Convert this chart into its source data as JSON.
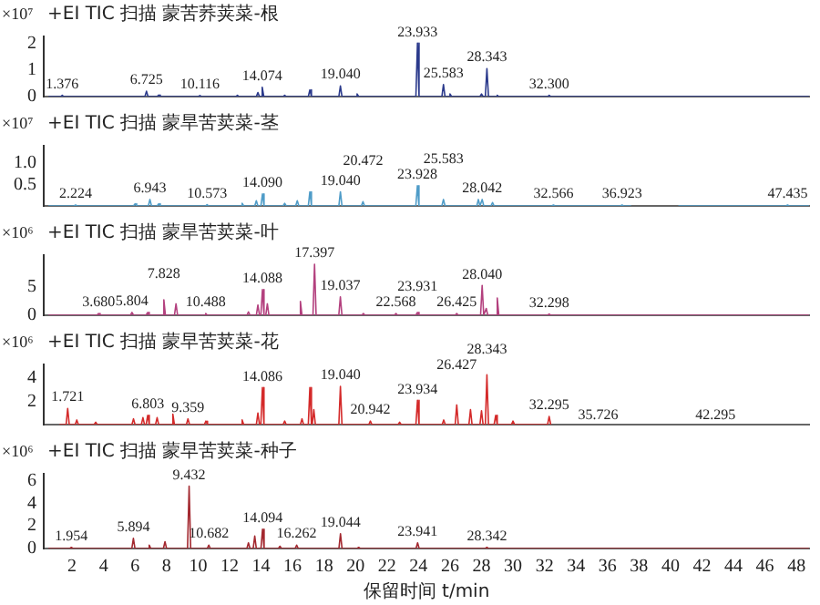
{
  "chart_data": [
    {
      "type": "line",
      "title": "+EI TIC 扫描 蒙苦荞荚菜-根",
      "ylabel": "×10⁷",
      "xlim": [
        0.2,
        48.8
      ],
      "xticks": [
        2,
        4,
        6,
        8,
        10,
        12,
        14,
        16,
        18,
        20,
        22,
        24,
        26,
        28,
        30,
        32,
        34,
        36,
        38,
        40,
        42,
        44,
        46,
        48
      ],
      "ylim": [
        0,
        2.25
      ],
      "yticks": [
        0,
        1,
        2
      ],
      "tick_labels": "y",
      "series": [
        {
          "color": "#2b3a8c",
          "x": [
            0.5,
            1.276,
            1.376,
            1.476,
            6.625,
            6.725,
            6.825,
            7.4,
            7.5,
            7.6,
            10.016,
            10.116,
            10.216,
            12.4,
            12.5,
            12.6,
            13.7,
            13.8,
            13.9,
            13.974,
            14.074,
            14.174,
            15.4,
            15.5,
            15.6,
            17.0,
            17.1,
            17.2,
            18.94,
            19.04,
            19.14,
            20.0,
            20.1,
            20.2,
            23.833,
            23.933,
            24.033,
            25.483,
            25.583,
            25.683,
            25.9,
            26.0,
            26.1,
            27.9,
            28.0,
            28.1,
            28.243,
            28.343,
            28.443,
            28.9,
            29.0,
            29.1,
            32.2,
            32.3,
            32.4,
            48.8
          ],
          "values": [
            0,
            0,
            0.05,
            0,
            0,
            0.2,
            0,
            0,
            0.06,
            0,
            0,
            0.04,
            0,
            0,
            0.05,
            0,
            0,
            0.15,
            0,
            0,
            0.35,
            0,
            0,
            0.05,
            0,
            0,
            0.25,
            0,
            0,
            0.4,
            0,
            0,
            0.1,
            0,
            0,
            2.0,
            0,
            0,
            0.45,
            0,
            0,
            0.1,
            0,
            0,
            0.1,
            0,
            0,
            1.05,
            0,
            0,
            0.05,
            0,
            0,
            0.05,
            0,
            0
          ]
        }
      ],
      "annotations": [
        {
          "text": "1.376",
          "x": 1.376,
          "y": 0.05
        },
        {
          "text": "6.725",
          "x": 6.725,
          "y": 0.2
        },
        {
          "text": "10.116",
          "x": 10.116,
          "y": 0.04
        },
        {
          "text": "14.074",
          "x": 14.074,
          "y": 0.35
        },
        {
          "text": "19.040",
          "x": 19.04,
          "y": 0.4
        },
        {
          "text": "23.933",
          "x": 23.933,
          "y": 2.0
        },
        {
          "text": "25.583",
          "x": 25.583,
          "y": 0.45
        },
        {
          "text": "28.343",
          "x": 28.343,
          "y": 1.05
        },
        {
          "text": "32.300",
          "x": 32.3,
          "y": 0.05
        }
      ]
    },
    {
      "type": "line",
      "title": "+EI TIC 扫描 蒙旱苦荬菜-茎",
      "ylabel": "×10⁷",
      "xlim": [
        0.2,
        48.8
      ],
      "xticks": [
        2,
        4,
        6,
        8,
        10,
        12,
        14,
        16,
        18,
        20,
        22,
        24,
        26,
        28,
        30,
        32,
        34,
        36,
        38,
        40,
        42,
        44,
        46,
        48
      ],
      "ylim": [
        0,
        1.4
      ],
      "yticks": [
        0.5,
        {
          "value": 1,
          "label": "1.0"
        }
      ],
      "tick_labels": "y",
      "series": [
        {
          "color": "#4f9cc8",
          "x": [
            0.5,
            2.124,
            2.224,
            2.324,
            5.9,
            6.0,
            6.1,
            6.843,
            6.943,
            7.043,
            7.4,
            7.5,
            7.6,
            10.473,
            10.573,
            10.673,
            12.7,
            12.8,
            12.9,
            13.6,
            13.7,
            13.8,
            13.99,
            14.09,
            14.19,
            15.4,
            15.5,
            15.6,
            16.2,
            16.3,
            16.4,
            17.0,
            17.1,
            17.2,
            18.94,
            19.04,
            19.14,
            20.372,
            20.472,
            20.572,
            23.828,
            23.928,
            24.028,
            25.483,
            25.583,
            25.683,
            27.7,
            27.8,
            27.9,
            27.942,
            28.042,
            28.142,
            28.6,
            28.7,
            28.8,
            32.466,
            32.566,
            32.666,
            36.823,
            36.923,
            37.023,
            37.5,
            39,
            40.5,
            47.335,
            47.435,
            47.535,
            48.8
          ],
          "values": [
            0,
            0,
            0.02,
            0,
            0,
            0.05,
            0,
            0,
            0.15,
            0,
            0,
            0.05,
            0,
            0,
            0.03,
            0,
            0,
            0.06,
            0,
            0,
            0.12,
            0,
            0,
            0.28,
            0,
            0,
            0.06,
            0,
            0,
            0.12,
            0,
            0,
            0.33,
            0,
            0,
            0.33,
            0,
            0,
            0.1,
            0,
            0,
            0.47,
            0,
            0,
            0.15,
            0,
            0,
            0.15,
            0,
            0,
            0.15,
            0,
            0,
            0.08,
            0,
            0,
            0.02,
            0,
            0,
            0.02,
            0,
            0,
            null,
            0,
            0,
            0.02,
            0,
            0
          ]
        }
      ],
      "annotations": [
        {
          "text": "2.224",
          "x": 2.224,
          "y": 0.02
        },
        {
          "text": "6.943",
          "x": 6.943,
          "y": 0.15
        },
        {
          "text": "10.573",
          "x": 10.573,
          "y": 0.03
        },
        {
          "text": "14.090",
          "x": 14.09,
          "y": 0.28
        },
        {
          "text": "19.040",
          "x": 19.04,
          "y": 0.33
        },
        {
          "text": "20.472",
          "x": 20.472,
          "y": 0.1
        },
        {
          "text": "23.928",
          "x": 23.928,
          "y": 0.47
        },
        {
          "text": "25.583",
          "x": 25.583,
          "y": 0.15
        },
        {
          "text": "28.042",
          "x": 28.042,
          "y": 0.15
        },
        {
          "text": "32.566",
          "x": 32.566,
          "y": 0.02
        },
        {
          "text": "36.923",
          "x": 36.923,
          "y": 0.02
        },
        {
          "text": "47.435",
          "x": 47.435,
          "y": 0.02
        }
      ]
    },
    {
      "type": "line",
      "title": "+EI TIC 扫描 蒙旱苦荬菜-叶",
      "ylabel": "×10⁶",
      "xlim": [
        0.2,
        48.8
      ],
      "xticks": [
        2,
        4,
        6,
        8,
        10,
        12,
        14,
        16,
        18,
        20,
        22,
        24,
        26,
        28,
        30,
        32,
        34,
        36,
        38,
        40,
        42,
        44,
        46,
        48
      ],
      "ylim": [
        0,
        10.5
      ],
      "yticks": [
        0,
        5
      ],
      "tick_labels": "y",
      "series": [
        {
          "color": "#b3407e",
          "x": [
            0.5,
            3.58,
            3.68,
            3.78,
            5.704,
            5.804,
            5.904,
            6.7,
            6.8,
            6.9,
            7.728,
            7.828,
            7.928,
            8.5,
            8.6,
            8.7,
            10.388,
            10.488,
            10.588,
            13.1,
            13.2,
            13.3,
            13.7,
            13.8,
            13.9,
            13.988,
            14.088,
            14.188,
            14.3,
            14.4,
            14.5,
            16.4,
            16.5,
            16.6,
            17.297,
            17.397,
            17.497,
            18.937,
            19.037,
            19.137,
            20.4,
            20.5,
            20.6,
            22.468,
            22.568,
            22.668,
            23.831,
            23.931,
            24.031,
            26.325,
            26.425,
            26.525,
            27.94,
            28.04,
            28.14,
            28.2,
            28.3,
            28.4,
            28.9,
            29.0,
            29.1,
            32.198,
            32.298,
            32.398,
            48.8
          ],
          "values": [
            0,
            0,
            0.3,
            0,
            0,
            0.5,
            0,
            0,
            0.5,
            0,
            0,
            2.7,
            0,
            0,
            2.0,
            0,
            0,
            0.3,
            0,
            0,
            0.6,
            0,
            0,
            1.8,
            0,
            0,
            4.5,
            0,
            0,
            2.0,
            0,
            0,
            2.4,
            0,
            0,
            8.9,
            0,
            0,
            3.2,
            0,
            0,
            0.3,
            0,
            0,
            0.3,
            0,
            0,
            0.5,
            0,
            0,
            0.3,
            0,
            0,
            5.2,
            0,
            0,
            1.2,
            0,
            0,
            3.0,
            0,
            0,
            0.2,
            0,
            0
          ]
        }
      ],
      "annotations": [
        {
          "text": "3.680",
          "x": 3.68,
          "y": 0.3
        },
        {
          "text": "5.804",
          "x": 5.804,
          "y": 0.5
        },
        {
          "text": "7.828",
          "x": 7.828,
          "y": 2.7
        },
        {
          "text": "10.488",
          "x": 10.488,
          "y": 0.3
        },
        {
          "text": "14.088",
          "x": 14.088,
          "y": 4.5
        },
        {
          "text": "17.397",
          "x": 17.397,
          "y": 8.9
        },
        {
          "text": "19.037",
          "x": 19.037,
          "y": 3.2
        },
        {
          "text": "22.568",
          "x": 22.568,
          "y": 0.3
        },
        {
          "text": "23.931",
          "x": 23.931,
          "y": 0.5
        },
        {
          "text": "26.425",
          "x": 26.425,
          "y": 0.3
        },
        {
          "text": "28.040",
          "x": 28.04,
          "y": 5.2
        },
        {
          "text": "32.298",
          "x": 32.298,
          "y": 0.2
        }
      ]
    },
    {
      "type": "line",
      "title": "+EI TIC 扫描 蒙早苦荬菜-花",
      "ylabel": "×10⁶",
      "xlim": [
        0.2,
        48.8
      ],
      "xticks": [
        2,
        4,
        6,
        8,
        10,
        12,
        14,
        16,
        18,
        20,
        22,
        24,
        26,
        28,
        30,
        32,
        34,
        36,
        38,
        40,
        42,
        44,
        46,
        48
      ],
      "ylim": [
        0,
        5.2
      ],
      "yticks": [
        2,
        4
      ],
      "tick_labels": "y",
      "series": [
        {
          "color": "#d42a2a",
          "x": [
            1.2,
            1.621,
            1.721,
            1.821,
            2.2,
            2.3,
            2.4,
            3.4,
            3.5,
            3.6,
            5.8,
            5.9,
            6.0,
            6.4,
            6.5,
            6.6,
            6.703,
            6.803,
            6.903,
            7.3,
            7.4,
            7.5,
            8.3,
            8.4,
            8.5,
            9.259,
            9.359,
            9.459,
            10.4,
            10.5,
            10.6,
            12.7,
            12.8,
            12.9,
            13.7,
            13.8,
            13.9,
            13.986,
            14.086,
            14.186,
            15.4,
            15.5,
            15.6,
            16.5,
            16.6,
            16.7,
            17.0,
            17.1,
            17.2,
            17.25,
            17.35,
            17.45,
            18.94,
            19.04,
            19.14,
            20.842,
            20.942,
            21.042,
            22.7,
            22.8,
            22.9,
            23.834,
            23.934,
            24.034,
            25.5,
            25.6,
            25.7,
            26.327,
            26.427,
            26.527,
            27.2,
            27.3,
            27.4,
            27.9,
            28.0,
            28.1,
            28.243,
            28.343,
            28.443,
            28.8,
            28.9,
            29.0,
            29.9,
            30.0,
            30.1,
            32.195,
            32.295,
            32.395
          ],
          "values": [
            0,
            0,
            1.4,
            0,
            0,
            0.4,
            0,
            0,
            0.2,
            0,
            0,
            0.5,
            0,
            0,
            0.6,
            0,
            0,
            0.8,
            0,
            0,
            0.6,
            0,
            0,
            0.9,
            0,
            0,
            0.5,
            0,
            0,
            0.3,
            0,
            0,
            0.4,
            0,
            0,
            1.0,
            0,
            0,
            3.2,
            0,
            0,
            0.3,
            0,
            0,
            0.5,
            0,
            0,
            3.2,
            0,
            0,
            1.3,
            0,
            0,
            3.3,
            0,
            0,
            0.3,
            0,
            0,
            0.2,
            0,
            0,
            2.1,
            0,
            0,
            0.4,
            0,
            0,
            1.7,
            0,
            0,
            1.3,
            0,
            0,
            1.2,
            0,
            0,
            4.3,
            0,
            0,
            0.8,
            0,
            0,
            0.3,
            0,
            0,
            0.7,
            0
          ]
        }
      ],
      "annotations": [
        {
          "text": "1.721",
          "x": 1.721,
          "y": 1.4
        },
        {
          "text": "6.803",
          "x": 6.803,
          "y": 0.8
        },
        {
          "text": "9.359",
          "x": 9.359,
          "y": 0.5
        },
        {
          "text": "14.086",
          "x": 14.086,
          "y": 3.2
        },
        {
          "text": "19.040",
          "x": 19.04,
          "y": 3.3
        },
        {
          "text": "20.942",
          "x": 20.942,
          "y": 0.3
        },
        {
          "text": "23.934",
          "x": 23.934,
          "y": 2.1
        },
        {
          "text": "26.427",
          "x": 26.427,
          "y": 1.7
        },
        {
          "text": "28.343",
          "x": 28.343,
          "y": 4.3
        },
        {
          "text": "32.295",
          "x": 32.295,
          "y": 0.7
        },
        "35.726",
        "42.295"
      ]
    },
    {
      "type": "line",
      "title": "+EI TIC 扫描 蒙早苦荬菜-种子",
      "ylabel": "×10⁶",
      "xlabel": "保留时间 t/min",
      "xlim": [
        0.2,
        48.8
      ],
      "xticks": [
        2,
        4,
        6,
        8,
        10,
        12,
        14,
        16,
        18,
        20,
        22,
        24,
        26,
        28,
        30,
        32,
        34,
        36,
        38,
        40,
        42,
        44,
        46,
        48
      ],
      "ylim": [
        0,
        6.6
      ],
      "yticks": [
        0,
        2,
        4,
        6
      ],
      "series": [
        {
          "color": "#a3282f",
          "x": [
            0.5,
            1.854,
            1.954,
            2.054,
            5.794,
            5.894,
            5.994,
            6.8,
            6.9,
            7.0,
            7.8,
            7.9,
            8.0,
            9.332,
            9.432,
            9.532,
            10.582,
            10.682,
            10.782,
            13.1,
            13.2,
            13.3,
            13.5,
            13.6,
            13.7,
            13.994,
            14.094,
            14.194,
            15.1,
            15.2,
            15.3,
            16.162,
            16.262,
            16.362,
            18.944,
            19.044,
            19.144,
            20.1,
            20.2,
            20.3,
            23.841,
            23.941,
            24.041,
            28.242,
            28.342,
            28.442,
            48.8
          ],
          "values": [
            0,
            0,
            0.1,
            0,
            0,
            0.9,
            0,
            0,
            0.3,
            0,
            0,
            0.6,
            0,
            0,
            5.5,
            0,
            0,
            0.3,
            0,
            0,
            0.5,
            0,
            0,
            1.1,
            0,
            0,
            1.7,
            0,
            0,
            0.2,
            0,
            0,
            0.3,
            0,
            0,
            1.3,
            0,
            0,
            0.1,
            0,
            0,
            0.5,
            0,
            0,
            0.1,
            0,
            0
          ]
        }
      ],
      "annotations": [
        {
          "text": "1.954",
          "x": 1.954,
          "y": 0.1
        },
        {
          "text": "5.894",
          "x": 5.894,
          "y": 0.9
        },
        {
          "text": "9.432",
          "x": 9.432,
          "y": 5.5
        },
        {
          "text": "10.682",
          "x": 10.682,
          "y": 0.3
        },
        {
          "text": "14.094",
          "x": 14.094,
          "y": 1.7
        },
        {
          "text": "16.262",
          "x": 16.262,
          "y": 0.3
        },
        {
          "text": "19.044",
          "x": 19.044,
          "y": 1.3
        },
        {
          "text": "23.941",
          "x": 23.941,
          "y": 0.5
        },
        {
          "text": "28.342",
          "x": 28.342,
          "y": 0.1
        }
      ]
    }
  ]
}
